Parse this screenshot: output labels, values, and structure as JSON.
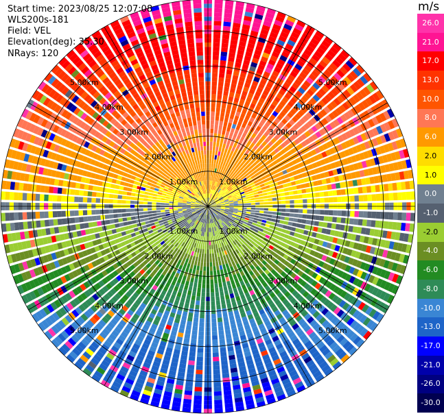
{
  "header": {
    "start_time": "Start time: 2023/08/25 12:07:08",
    "instrument": "WLS200s-181",
    "field": "Field: VEL",
    "elevation": "Elevation(deg): 35.30",
    "nrays": "NRays: 120"
  },
  "ppi": {
    "range_rings": [
      {
        "label": "1.00km",
        "range_km": 1
      },
      {
        "label": "2.00km",
        "range_km": 2
      },
      {
        "label": "3.00km",
        "range_km": 3
      },
      {
        "label": "4.00km",
        "range_km": 4
      },
      {
        "label": "5.00km",
        "range_km": 5
      }
    ],
    "max_range_km": 5.9,
    "n_rays": 120
  },
  "colorbar": {
    "unit": "m/s",
    "ticks": [
      "26.0",
      "21.0",
      "17.0",
      "13.0",
      "10.0",
      "8.0",
      "6.0",
      "2.0",
      "1.0",
      "0.0",
      "-1.0",
      "-2.0",
      "-4.0",
      "-6.0",
      "-8.0",
      "-10.0",
      "-13.0",
      "-17.0",
      "-21.0",
      "-26.0",
      "-30.0"
    ],
    "colors": [
      "#ff33aa",
      "#ff1493",
      "#ff0000",
      "#ff3300",
      "#ff5500",
      "#ff7755",
      "#ff9900",
      "#ffdd00",
      "#ffff00",
      "#708090",
      "#556070",
      "#9acd32",
      "#6b8e23",
      "#228b22",
      "#2e8b57",
      "#3a86d4",
      "#1e64c8",
      "#0000ff",
      "#0000aa",
      "#000080",
      "#000050"
    ]
  }
}
